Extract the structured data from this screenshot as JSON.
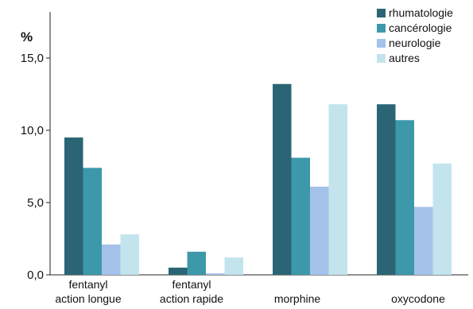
{
  "chart_data": {
    "type": "bar",
    "ylabel": "%",
    "ylim": [
      0,
      15
    ],
    "yticks": [
      "0,0",
      "5,0",
      "10,0",
      "15,0"
    ],
    "yticks_values": [
      0,
      5,
      10,
      15
    ],
    "categories": [
      [
        "fentanyl",
        "action longue"
      ],
      [
        "fentanyl",
        "action rapide"
      ],
      [
        "morphine"
      ],
      [
        "oxycodone"
      ]
    ],
    "series": [
      {
        "name": "rhumatologie",
        "color": "#2b6575",
        "values": [
          9.5,
          0.5,
          13.2,
          11.8
        ]
      },
      {
        "name": "cancérologie",
        "color": "#3d98aa",
        "values": [
          7.4,
          1.6,
          8.1,
          10.7
        ]
      },
      {
        "name": "neurologie",
        "color": "#a4c2ea",
        "values": [
          2.1,
          0.1,
          6.1,
          4.7
        ]
      },
      {
        "name": "autres",
        "color": "#c3e4ec",
        "values": [
          2.8,
          1.2,
          11.8,
          7.7
        ]
      }
    ],
    "grid": false,
    "legend": "top-right"
  }
}
